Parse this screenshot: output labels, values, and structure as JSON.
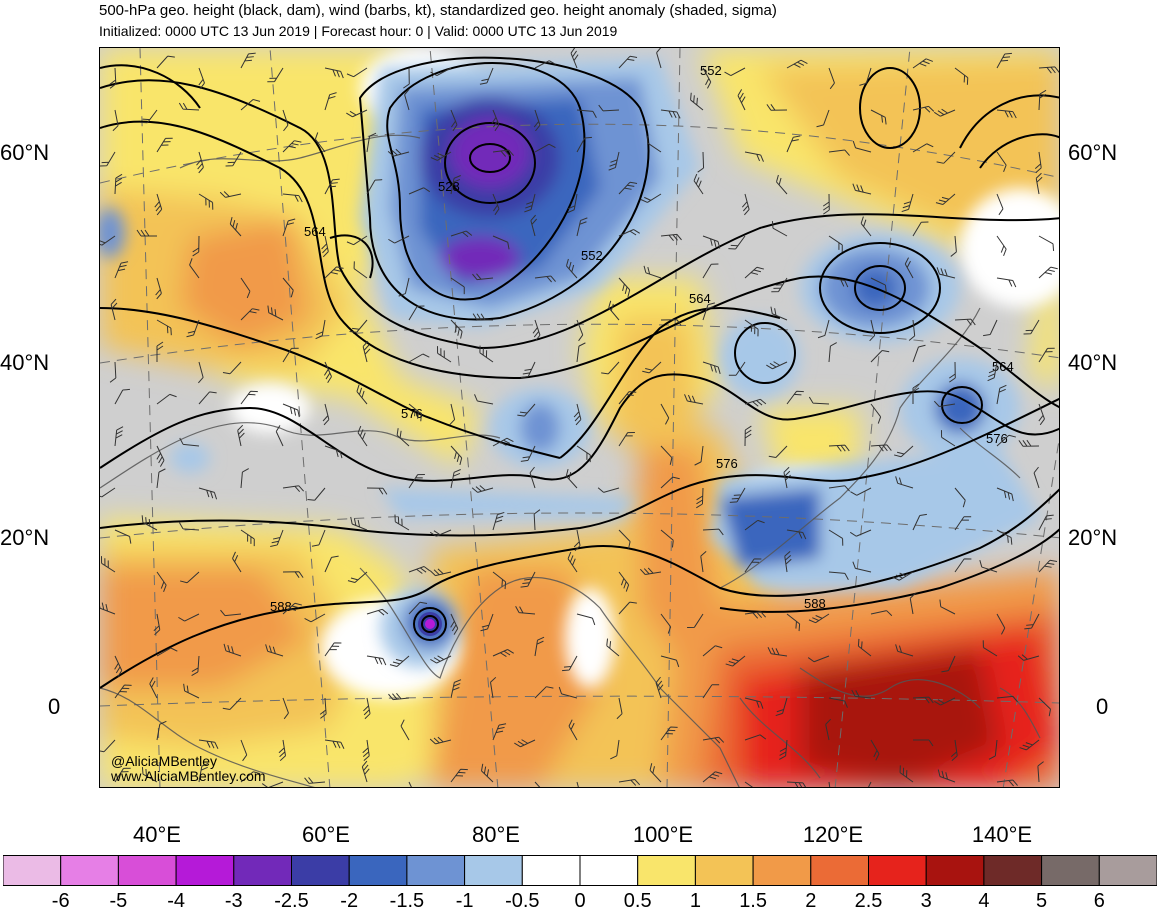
{
  "title": "500-hPa geo. height (black, dam), wind (barbs, kt), standardized geo. height anomaly (shaded, sigma)",
  "subtitle": "Initialized: 0000 UTC 13 Jun 2019 | Forecast hour: 0 | Valid: 0000 UTC 13 Jun 2019",
  "credit": {
    "handle": "@AliciaMBentley",
    "website": "www.AliciaMBentley.com"
  },
  "latitude_labels": [
    "60°N",
    "40°N",
    "20°N",
    "0"
  ],
  "longitude_labels": [
    "40°E",
    "60°E",
    "80°E",
    "100°E",
    "120°E",
    "140°E"
  ],
  "contour_labels": [
    "552",
    "528",
    "564",
    "552",
    "564",
    "576",
    "564",
    "576",
    "576",
    "588",
    "588"
  ],
  "colorbar": {
    "labels": [
      "-6",
      "-5",
      "-4",
      "-3",
      "-2.5",
      "-2",
      "-1.5",
      "-1",
      "-0.5",
      "0",
      "0.5",
      "1",
      "1.5",
      "2",
      "2.5",
      "3",
      "4",
      "5",
      "6"
    ],
    "colors": [
      "#ebbbe6",
      "#e67fe6",
      "#d84ed8",
      "#b51ad8",
      "#7229b9",
      "#3b3da6",
      "#3a66be",
      "#6e93d3",
      "#a7c8e8",
      "#ffffff",
      "#ffffff",
      "#f9e56b",
      "#f3c356",
      "#f19a48",
      "#eb6b36",
      "#e6231c",
      "#a8130f",
      "#6e2a28",
      "#776a68",
      "#a89c9c"
    ]
  },
  "colors": {
    "land_neutral": "#cfcfcf",
    "positive_weak": "#f9e56b",
    "negative_strong": "#3b3da6"
  }
}
